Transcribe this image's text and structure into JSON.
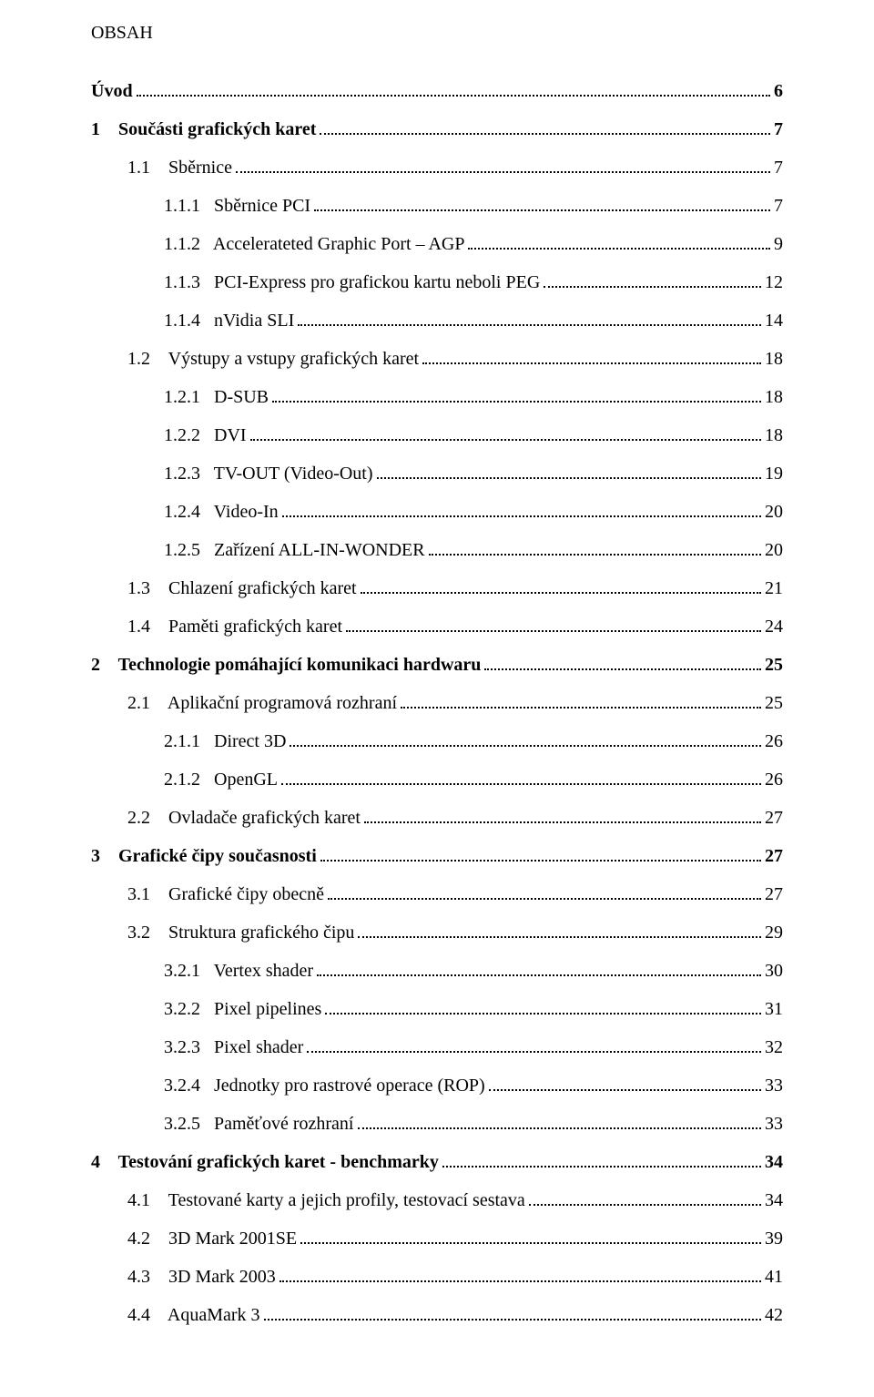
{
  "heading": "OBSAH",
  "toc": [
    {
      "num": "",
      "title": "Úvod",
      "page": "6",
      "indent": 0,
      "bold": true,
      "gap": 2
    },
    {
      "num": "1",
      "title": "Součásti grafických karet",
      "page": "7",
      "indent": 0,
      "bold": true,
      "gap": 4
    },
    {
      "num": "1.1",
      "title": "Sběrnice",
      "page": "7",
      "indent": 1,
      "bold": false,
      "gap": 4
    },
    {
      "num": "1.1.1",
      "title": "Sběrnice PCI",
      "page": "7",
      "indent": 2,
      "bold": false,
      "gap": 3
    },
    {
      "num": "1.1.2",
      "title": "Accelerateted Graphic Port – AGP",
      "page": "9",
      "indent": 2,
      "bold": false,
      "gap": 3
    },
    {
      "num": "1.1.3",
      "title": "PCI-Express pro grafickou kartu neboli PEG",
      "page": "12",
      "indent": 2,
      "bold": false,
      "gap": 3
    },
    {
      "num": "1.1.4",
      "title": "nVidia SLI",
      "page": "14",
      "indent": 2,
      "bold": false,
      "gap": 3
    },
    {
      "num": "1.2",
      "title": "Výstupy a vstupy grafických karet",
      "page": "18",
      "indent": 1,
      "bold": false,
      "gap": 4
    },
    {
      "num": "1.2.1",
      "title": "D-SUB",
      "page": "18",
      "indent": 2,
      "bold": false,
      "gap": 3
    },
    {
      "num": "1.2.2",
      "title": "DVI",
      "page": "18",
      "indent": 2,
      "bold": false,
      "gap": 3
    },
    {
      "num": "1.2.3",
      "title": "TV-OUT (Video-Out)",
      "page": "19",
      "indent": 2,
      "bold": false,
      "gap": 3
    },
    {
      "num": "1.2.4",
      "title": "Video-In",
      "page": "20",
      "indent": 2,
      "bold": false,
      "gap": 3
    },
    {
      "num": "1.2.5",
      "title": "Zařízení ALL-IN-WONDER",
      "page": "20",
      "indent": 2,
      "bold": false,
      "gap": 3
    },
    {
      "num": "1.3",
      "title": "Chlazení grafických karet",
      "page": "21",
      "indent": 1,
      "bold": false,
      "gap": 4
    },
    {
      "num": "1.4",
      "title": "Paměti grafických karet",
      "page": "24",
      "indent": 1,
      "bold": false,
      "gap": 4
    },
    {
      "num": "2",
      "title": "Technologie pomáhající komunikaci hardwaru",
      "page": "25",
      "indent": 0,
      "bold": true,
      "gap": 4
    },
    {
      "num": "2.1",
      "title": "Aplikační programová rozhraní",
      "page": "25",
      "indent": 1,
      "bold": false,
      "gap": 4
    },
    {
      "num": "2.1.1",
      "title": "Direct 3D",
      "page": "26",
      "indent": 2,
      "bold": false,
      "gap": 3
    },
    {
      "num": "2.1.2",
      "title": "OpenGL",
      "page": "26",
      "indent": 2,
      "bold": false,
      "gap": 3
    },
    {
      "num": "2.2",
      "title": "Ovladače grafických karet",
      "page": "27",
      "indent": 1,
      "bold": false,
      "gap": 4
    },
    {
      "num": "3",
      "title": "Grafické čipy současnosti",
      "page": "27",
      "indent": 0,
      "bold": true,
      "gap": 4
    },
    {
      "num": "3.1",
      "title": "Grafické čipy obecně",
      "page": "27",
      "indent": 1,
      "bold": false,
      "gap": 4
    },
    {
      "num": "3.2",
      "title": "Struktura grafického čipu",
      "page": "29",
      "indent": 1,
      "bold": false,
      "gap": 4
    },
    {
      "num": "3.2.1",
      "title": "Vertex shader",
      "page": "30",
      "indent": 2,
      "bold": false,
      "gap": 3
    },
    {
      "num": "3.2.2",
      "title": "Pixel pipelines",
      "page": "31",
      "indent": 2,
      "bold": false,
      "gap": 3
    },
    {
      "num": "3.2.3",
      "title": "Pixel shader",
      "page": "32",
      "indent": 2,
      "bold": false,
      "gap": 3
    },
    {
      "num": "3.2.4",
      "title": "Jednotky pro rastrové operace (ROP)",
      "page": "33",
      "indent": 2,
      "bold": false,
      "gap": 3
    },
    {
      "num": "3.2.5",
      "title": "Paměťové rozhraní",
      "page": "33",
      "indent": 2,
      "bold": false,
      "gap": 3
    },
    {
      "num": "4",
      "title": "Testování grafických karet - benchmarky",
      "page": "34",
      "indent": 0,
      "bold": true,
      "gap": 4
    },
    {
      "num": "4.1",
      "title": "Testované karty a jejich profily, testovací sestava",
      "page": "34",
      "indent": 1,
      "bold": false,
      "gap": 4
    },
    {
      "num": "4.2",
      "title": "3D Mark 2001SE",
      "page": "39",
      "indent": 1,
      "bold": false,
      "gap": 4
    },
    {
      "num": "4.3",
      "title": "3D Mark 2003",
      "page": "41",
      "indent": 1,
      "bold": false,
      "gap": 4
    },
    {
      "num": "4.4",
      "title": "AquaMark 3",
      "page": "42",
      "indent": 1,
      "bold": false,
      "gap": 4
    }
  ]
}
